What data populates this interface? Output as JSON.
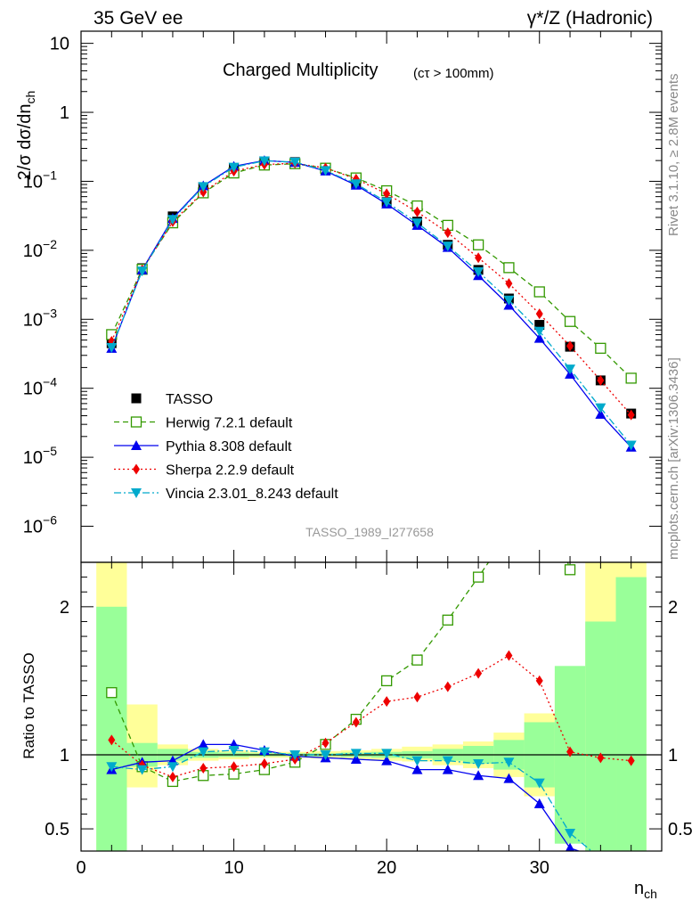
{
  "header": {
    "left": "35 GeV ee",
    "right": "γ*/Z (Hadronic)"
  },
  "side": {
    "rivet": "Rivet 3.1.10, ≥ 2.8M events",
    "mcplots": "mcplots.cern.ch [arXiv:1306.3436]"
  },
  "chart_data": [
    {
      "type": "scatter",
      "title": "Charged Multiplicity",
      "subtitle": "(cτ > 100mm)",
      "ylabel": "2/σ dσ/dn",
      "ylabel_sub": "ch",
      "yscale": "log",
      "ylim": [
        3e-07,
        15
      ],
      "xlim": [
        0,
        38
      ],
      "yticks": [
        {
          "v": 1e-06,
          "base": "10",
          "exp": "−6"
        },
        {
          "v": 1e-05,
          "base": "10",
          "exp": "−5"
        },
        {
          "v": 0.0001,
          "base": "10",
          "exp": "−4"
        },
        {
          "v": 0.001,
          "base": "10",
          "exp": "−3"
        },
        {
          "v": 0.01,
          "base": "10",
          "exp": "−2"
        },
        {
          "v": 0.1,
          "base": "10",
          "exp": "−1"
        },
        {
          "v": 1,
          "base": "1",
          "exp": ""
        },
        {
          "v": 10,
          "base": "10",
          "exp": ""
        }
      ],
      "watermark": "TASSO_1989_I277658",
      "legend_position": "bottom-left",
      "series": [
        {
          "name": "TASSO",
          "style": "data",
          "color": "#000000",
          "x": [
            2,
            4,
            6,
            8,
            10,
            12,
            14,
            16,
            18,
            20,
            22,
            24,
            26,
            28,
            30,
            32,
            34,
            36
          ],
          "y": [
            0.00045,
            0.0055,
            0.031,
            0.082,
            0.155,
            0.195,
            0.19,
            0.145,
            0.092,
            0.05,
            0.026,
            0.012,
            0.0052,
            0.002,
            0.00083,
            0.0004,
            0.00013,
            4.3e-05
          ]
        },
        {
          "name": "Herwig 7.2.1 default",
          "style": "herwig",
          "color": "#339900",
          "x": [
            2,
            4,
            6,
            8,
            10,
            12,
            14,
            16,
            18,
            20,
            22,
            24,
            26,
            28,
            30,
            32,
            34,
            36
          ],
          "y": [
            0.0006,
            0.0053,
            0.025,
            0.068,
            0.132,
            0.172,
            0.18,
            0.155,
            0.112,
            0.073,
            0.044,
            0.023,
            0.012,
            0.0056,
            0.0025,
            0.00093,
            0.00038,
            0.00014
          ]
        },
        {
          "name": "Pythia 8.308 default",
          "style": "pythia",
          "color": "#0000ee",
          "x": [
            2,
            4,
            6,
            8,
            10,
            12,
            14,
            16,
            18,
            20,
            22,
            24,
            26,
            28,
            30,
            32,
            34,
            36
          ],
          "y": [
            0.00038,
            0.0052,
            0.029,
            0.086,
            0.165,
            0.2,
            0.188,
            0.141,
            0.088,
            0.047,
            0.023,
            0.011,
            0.0043,
            0.0016,
            0.00053,
            0.00016,
            4.2e-05,
            1.4e-05
          ]
        },
        {
          "name": "Sherpa 2.2.9 default",
          "style": "sherpa",
          "color": "#ee0000",
          "x": [
            2,
            4,
            6,
            8,
            10,
            12,
            14,
            16,
            18,
            20,
            22,
            24,
            26,
            28,
            30,
            32,
            34,
            36
          ],
          "y": [
            0.00048,
            0.0052,
            0.026,
            0.07,
            0.14,
            0.175,
            0.183,
            0.156,
            0.108,
            0.066,
            0.036,
            0.018,
            0.0078,
            0.0033,
            0.0012,
            0.00041,
            0.00013,
            4.1e-05
          ]
        },
        {
          "name": "Vincia 2.3.01_8.243 default",
          "style": "vincia",
          "color": "#00aacc",
          "x": [
            2,
            4,
            6,
            8,
            10,
            12,
            14,
            16,
            18,
            20,
            22,
            24,
            26,
            28,
            30,
            32,
            34,
            36
          ],
          "y": [
            0.00039,
            0.005,
            0.028,
            0.084,
            0.16,
            0.198,
            0.19,
            0.143,
            0.092,
            0.05,
            0.025,
            0.0115,
            0.0049,
            0.0019,
            0.00067,
            0.00019,
            5.2e-05,
            1.5e-05
          ]
        }
      ]
    },
    {
      "type": "line",
      "ylabel": "Ratio to TASSO",
      "xlabel": "n",
      "xlabel_sub": "ch",
      "ylim": [
        0.35,
        2.3
      ],
      "xlim": [
        0,
        38
      ],
      "xticks": [
        0,
        10,
        20,
        30
      ],
      "yticks": [
        0.5,
        1,
        2
      ],
      "bands": {
        "x_edges": [
          1,
          3,
          5,
          7,
          9,
          11,
          13,
          15,
          17,
          19,
          21,
          23,
          25,
          27,
          29,
          31,
          33,
          35,
          37
        ],
        "inner": [
          [
            0.2,
            2.0
          ],
          [
            0.92,
            1.08
          ],
          [
            0.96,
            1.04
          ],
          [
            0.98,
            1.02
          ],
          [
            0.985,
            1.015
          ],
          [
            0.99,
            1.01
          ],
          [
            0.99,
            1.01
          ],
          [
            0.99,
            1.01
          ],
          [
            0.985,
            1.015
          ],
          [
            0.98,
            1.02
          ],
          [
            0.975,
            1.025
          ],
          [
            0.96,
            1.04
          ],
          [
            0.94,
            1.06
          ],
          [
            0.9,
            1.1
          ],
          [
            0.78,
            1.22
          ],
          [
            0.4,
            1.6
          ],
          [
            0.1,
            1.9
          ],
          [
            0.0,
            2.2
          ]
        ],
        "outer": [
          [
            0.0,
            2.4
          ],
          [
            0.78,
            1.34
          ],
          [
            0.93,
            1.07
          ],
          [
            0.96,
            1.04
          ],
          [
            0.97,
            1.03
          ],
          [
            0.98,
            1.02
          ],
          [
            0.98,
            1.02
          ],
          [
            0.975,
            1.025
          ],
          [
            0.97,
            1.03
          ],
          [
            0.96,
            1.04
          ],
          [
            0.955,
            1.055
          ],
          [
            0.93,
            1.07
          ],
          [
            0.91,
            1.09
          ],
          [
            0.85,
            1.15
          ],
          [
            0.72,
            1.28
          ],
          [
            0.45,
            1.55
          ],
          [
            0.0,
            2.3
          ],
          [
            0.0,
            2.4
          ],
          [
            0.0,
            2.4
          ]
        ]
      },
      "series": [
        {
          "name": "Herwig 7.2.1 default",
          "style": "herwig",
          "color": "#339900",
          "x": [
            2,
            4,
            6,
            8,
            10,
            12,
            14,
            16,
            18,
            20,
            22,
            24,
            26,
            28,
            30,
            32
          ],
          "y": [
            1.42,
            0.92,
            0.82,
            0.86,
            0.87,
            0.9,
            0.95,
            1.07,
            1.24,
            1.5,
            1.64,
            1.91,
            2.2,
            2.5,
            2.9,
            2.25
          ]
        },
        {
          "name": "Pythia 8.308 default",
          "style": "pythia",
          "color": "#0000ee",
          "x": [
            2,
            4,
            6,
            8,
            10,
            12,
            14,
            16,
            18,
            20,
            22,
            24,
            26,
            28,
            30,
            32,
            34
          ],
          "y": [
            0.9,
            0.95,
            0.96,
            1.07,
            1.07,
            1.03,
            0.99,
            0.98,
            0.97,
            0.96,
            0.9,
            0.9,
            0.86,
            0.84,
            0.67,
            0.37,
            0.3
          ]
        },
        {
          "name": "Sherpa 2.2.9 default",
          "style": "sherpa",
          "color": "#ee0000",
          "x": [
            2,
            4,
            6,
            8,
            10,
            12,
            14,
            16,
            18,
            20,
            22,
            24,
            26,
            28,
            30,
            32,
            34,
            36
          ],
          "y": [
            1.1,
            0.93,
            0.85,
            0.91,
            0.92,
            0.94,
            0.97,
            1.08,
            1.22,
            1.36,
            1.39,
            1.46,
            1.55,
            1.67,
            1.5,
            1.02,
            0.98,
            0.96
          ]
        },
        {
          "name": "Vincia 2.3.01_8.243 default",
          "style": "vincia",
          "color": "#00aacc",
          "x": [
            2,
            4,
            6,
            8,
            10,
            12,
            14,
            16,
            18,
            20,
            22,
            24,
            26,
            28,
            30,
            32,
            34
          ],
          "y": [
            0.92,
            0.9,
            0.92,
            1.02,
            1.03,
            1.02,
            1.0,
            1.0,
            1.01,
            1.01,
            0.96,
            0.96,
            0.94,
            0.95,
            0.81,
            0.47,
            0.3
          ]
        }
      ]
    }
  ],
  "colors": {
    "band_inner": "#99ff99",
    "band_outer": "#ffff99"
  }
}
